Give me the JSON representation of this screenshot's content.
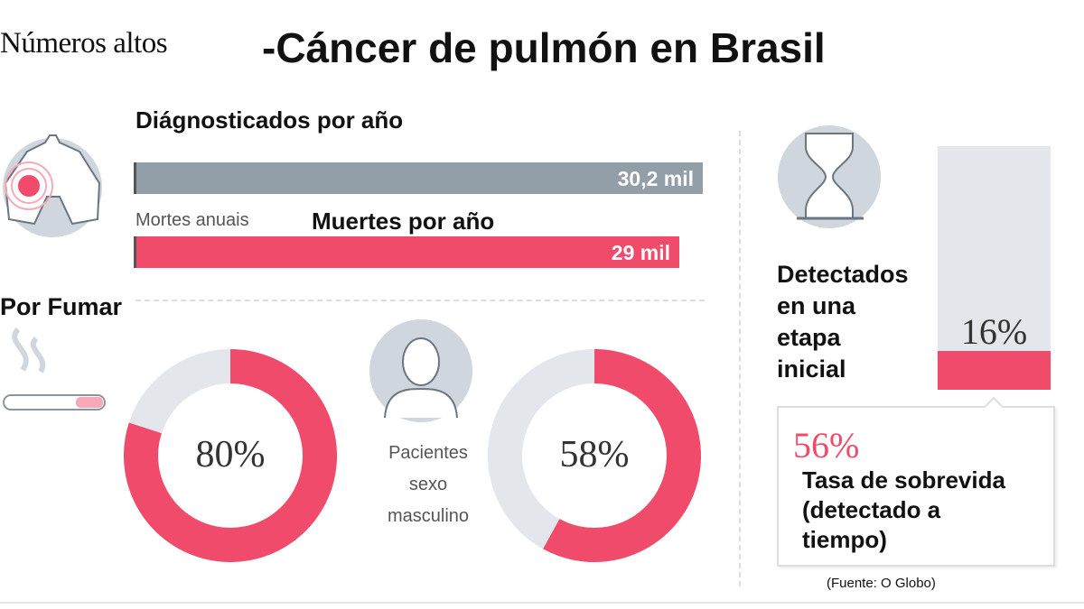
{
  "header": {
    "brand": "Números altos",
    "title": "-Cáncer de pulmón en Brasil"
  },
  "diagnosed": {
    "heading": "Diágnosticados por año",
    "value_label": "30,2 mil"
  },
  "deaths": {
    "original_label": "Mortes anuais",
    "heading": "Muertes por año",
    "value_label": "29 mil"
  },
  "smoking": {
    "heading": "Por Fumar",
    "value_label": "80%"
  },
  "male": {
    "label_lines": [
      "Pacientes",
      "sexo",
      "masculino"
    ],
    "value_label": "58%"
  },
  "early": {
    "heading_lines": [
      "Detectados",
      "en una",
      "etapa",
      "inicial"
    ],
    "value_label": "16%"
  },
  "survival": {
    "value_label": "56%",
    "text_lines": [
      "Tasa de sobrevida",
      "(detectado a",
      "tiempo)"
    ]
  },
  "source": "(Fuente: O Globo)",
  "colors": {
    "accent": "#f04b6a",
    "bar_grey": "#929ea8",
    "track": "#e3e6ea",
    "icon_bg": "#cfd6dd"
  },
  "icons": [
    "lungs-icon",
    "cigarette-icon",
    "person-icon",
    "hourglass-icon"
  ],
  "chart_data": [
    {
      "type": "bar",
      "orientation": "horizontal",
      "categories": [
        "Diágnosticados por año",
        "Muertes por año"
      ],
      "values": [
        30.2,
        29
      ],
      "unit": "mil"
    },
    {
      "type": "pie",
      "variant": "donut",
      "title": "Por Fumar",
      "values": [
        80,
        20
      ],
      "unit": "%"
    },
    {
      "type": "pie",
      "variant": "donut",
      "title": "Pacientes sexo masculino",
      "values": [
        58,
        42
      ],
      "unit": "%"
    },
    {
      "type": "bar",
      "orientation": "vertical",
      "title": "Detectados en una etapa inicial",
      "values": [
        16
      ],
      "unit": "%",
      "ylim": [
        0,
        100
      ]
    }
  ]
}
